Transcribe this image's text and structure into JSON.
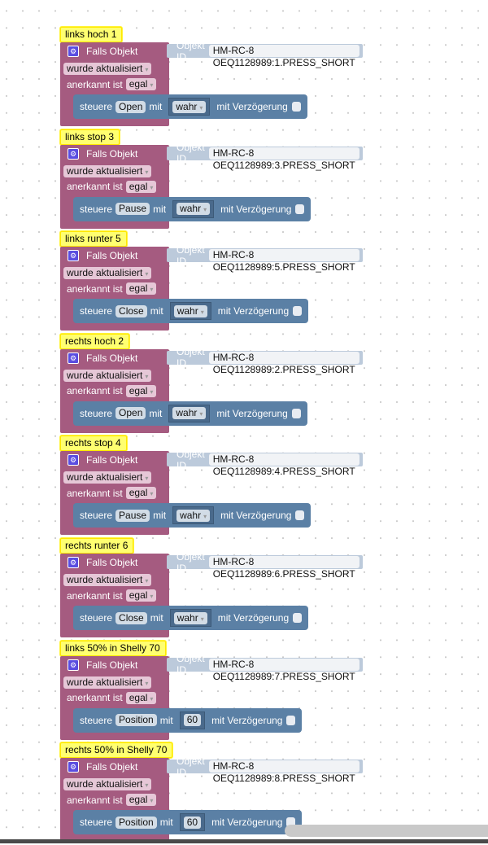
{
  "labels": {
    "falls": "Falls Objekt",
    "objekt_id": "Objekt ID",
    "anerkannt": "anerkannt ist",
    "steuere": "steuere",
    "mit": "mit",
    "verzoegerung": "mit Verzögerung"
  },
  "colors": {
    "event_block": "#a55b80",
    "action_block": "#5b80a5",
    "comment": "#ffff70",
    "object_block": "#bccadb"
  },
  "groups": [
    {
      "comment": "links hoch 1",
      "object": "HM-RC-8 OEQ1128989:1.PRESS_SHORT",
      "trigger": "wurde aktualisiert",
      "ack": "egal",
      "command": "Open",
      "value": "wahr",
      "value_type": "dropdown",
      "delay": false
    },
    {
      "comment": "links stop 3",
      "object": "HM-RC-8 OEQ1128989:3.PRESS_SHORT",
      "trigger": "wurde aktualisiert",
      "ack": "egal",
      "command": "Pause",
      "value": "wahr",
      "value_type": "dropdown",
      "delay": false
    },
    {
      "comment": "links runter 5",
      "object": "HM-RC-8 OEQ1128989:5.PRESS_SHORT",
      "trigger": "wurde aktualisiert",
      "ack": "egal",
      "command": "Close",
      "value": "wahr",
      "value_type": "dropdown",
      "delay": false
    },
    {
      "comment": "rechts hoch 2",
      "object": "HM-RC-8 OEQ1128989:2.PRESS_SHORT",
      "trigger": "wurde aktualisiert",
      "ack": "egal",
      "command": "Open",
      "value": "wahr",
      "value_type": "dropdown",
      "delay": false
    },
    {
      "comment": "rechts stop 4",
      "object": "HM-RC-8 OEQ1128989:4.PRESS_SHORT",
      "trigger": "wurde aktualisiert",
      "ack": "egal",
      "command": "Pause",
      "value": "wahr",
      "value_type": "dropdown",
      "delay": false
    },
    {
      "comment": "rechts runter 6",
      "object": "HM-RC-8 OEQ1128989:6.PRESS_SHORT",
      "trigger": "wurde aktualisiert",
      "ack": "egal",
      "command": "Close",
      "value": "wahr",
      "value_type": "dropdown",
      "delay": false
    },
    {
      "comment": "links 50% in Shelly 70",
      "object": "HM-RC-8 OEQ1128989:7.PRESS_SHORT",
      "trigger": "wurde aktualisiert",
      "ack": "egal",
      "command": "Position",
      "value": "60",
      "value_type": "number",
      "delay": false
    },
    {
      "comment": "rechts 50% in Shelly 70",
      "object": "HM-RC-8 OEQ1128989:8.PRESS_SHORT",
      "trigger": "wurde aktualisiert",
      "ack": "egal",
      "command": "Position",
      "value": "60",
      "value_type": "number",
      "delay": false
    }
  ]
}
